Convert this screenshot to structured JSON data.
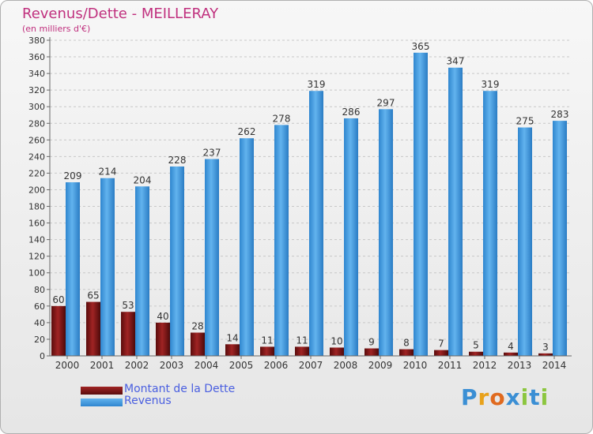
{
  "header": {
    "title": "Revenus/Dette - MEILLERAY",
    "subtitle": "(en milliers d'€)"
  },
  "chart_data": {
    "type": "bar",
    "title": "Revenus/Dette - MEILLERAY",
    "subtitle": "(en milliers d'€)",
    "xlabel": "",
    "ylabel": "",
    "ylim": [
      0,
      380
    ],
    "ytick_step": 20,
    "grid": true,
    "legend_position": "bottom-left",
    "categories": [
      "2000",
      "2001",
      "2002",
      "2003",
      "2004",
      "2005",
      "2006",
      "2007",
      "2008",
      "2009",
      "2010",
      "2011",
      "2012",
      "2013",
      "2014"
    ],
    "series": [
      {
        "name": "Montant de la Dette",
        "color": "#7a1414",
        "values": [
          60,
          65,
          53,
          40,
          28,
          14,
          11,
          11,
          10,
          9,
          8,
          7,
          5,
          4,
          3
        ]
      },
      {
        "name": "Revenus",
        "color": "#4da2e6",
        "values": [
          209,
          214,
          204,
          228,
          237,
          262,
          278,
          319,
          286,
          297,
          365,
          347,
          319,
          275,
          283
        ]
      }
    ]
  },
  "logo": {
    "letters": [
      {
        "char": "P",
        "color": "#3b8fd4"
      },
      {
        "char": "r",
        "color": "#e8a21b"
      },
      {
        "char": "o",
        "color": "#e06a1f"
      },
      {
        "char": "x",
        "color": "#3b8fd4"
      },
      {
        "char": "i",
        "color": "#8cc63f"
      },
      {
        "char": "t",
        "color": "#3b8fd4"
      },
      {
        "char": "i",
        "color": "#8cc63f"
      }
    ]
  }
}
